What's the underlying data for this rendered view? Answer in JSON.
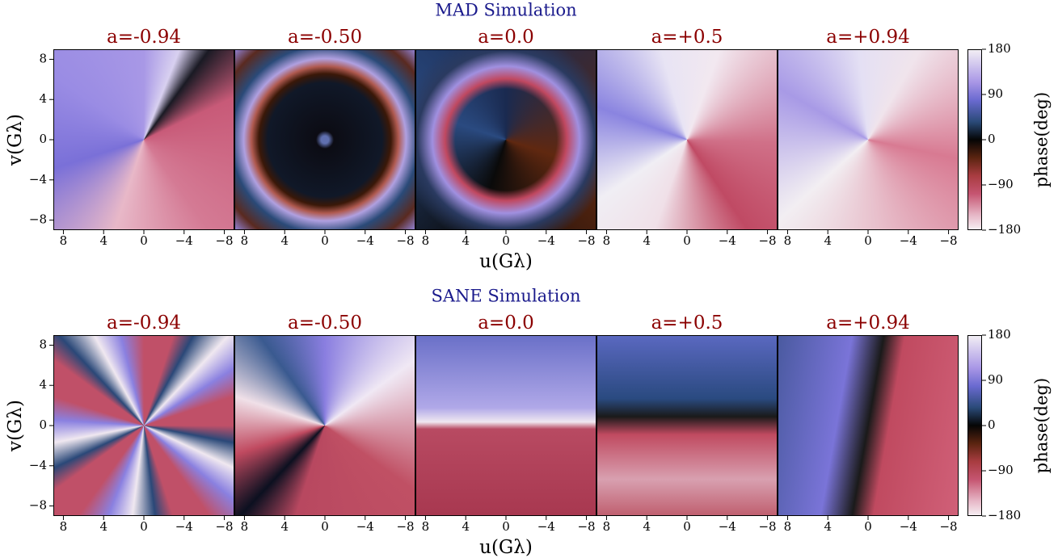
{
  "chart_data": [
    {
      "type": "heatmap",
      "title": "MAD Simulation",
      "panel_titles": [
        "a=-0.94",
        "a=-0.50",
        "a=0.0",
        "a=+0.5",
        "a=+0.94"
      ],
      "xlabel": "u(Gλ)",
      "ylabel": "v(Gλ)",
      "xlim": [
        9,
        -9
      ],
      "ylim": [
        -9,
        9
      ],
      "xticks": [
        8,
        4,
        0,
        {
          "value": -4,
          "label": "−4"
        },
        {
          "value": -8,
          "label": "−8"
        }
      ],
      "yticks": [
        {
          "value": -8,
          "label": "−8"
        },
        {
          "value": -4,
          "label": "−4"
        },
        0,
        4,
        8
      ],
      "colorbar": {
        "label": "phase(deg)",
        "lim": [
          -180,
          180
        ],
        "ticks": [
          {
            "value": -180,
            "label": "−180"
          },
          {
            "value": -90,
            "label": "−90"
          },
          0,
          90,
          180
        ]
      }
    },
    {
      "type": "heatmap",
      "title": "SANE Simulation",
      "panel_titles": [
        "a=-0.94",
        "a=-0.50",
        "a=0.0",
        "a=+0.5",
        "a=+0.94"
      ],
      "xlabel": "u(Gλ)",
      "ylabel": "v(Gλ)",
      "xlim": [
        9,
        -9
      ],
      "ylim": [
        -9,
        9
      ],
      "xticks": [
        8,
        4,
        0,
        {
          "value": -4,
          "label": "−4"
        },
        {
          "value": -8,
          "label": "−8"
        }
      ],
      "yticks": [
        {
          "value": -8,
          "label": "−8"
        },
        {
          "value": -4,
          "label": "−4"
        },
        0,
        4,
        8
      ],
      "colorbar": {
        "label": "phase(deg)",
        "lim": [
          -180,
          180
        ],
        "ticks": [
          {
            "value": -180,
            "label": "−180"
          },
          {
            "value": -90,
            "label": "−90"
          },
          0,
          90,
          180
        ]
      }
    }
  ]
}
